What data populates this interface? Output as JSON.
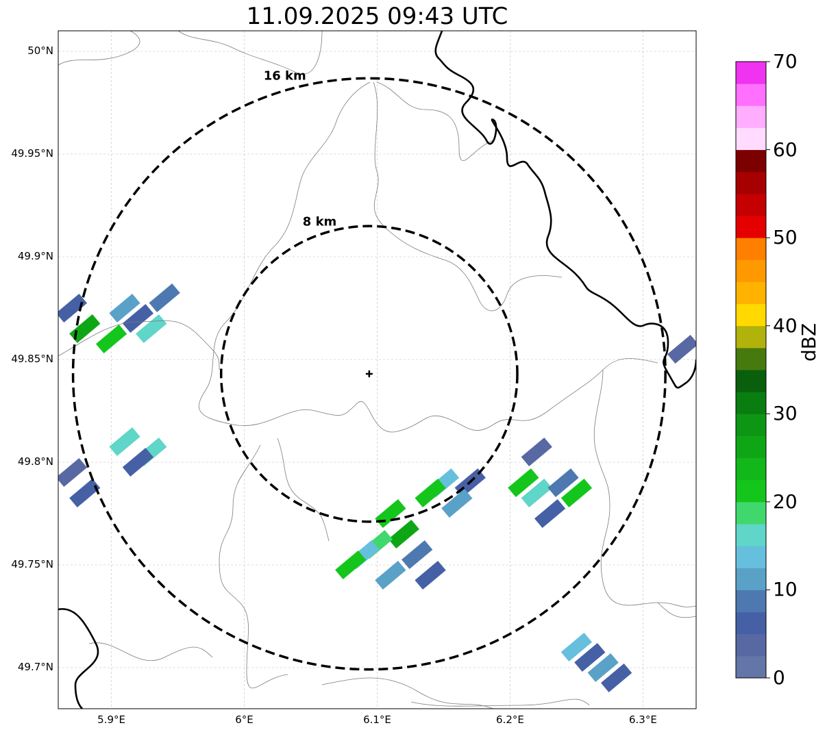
{
  "title": "11.09.2025 09:43 UTC",
  "map": {
    "lon_range": [
      5.86,
      6.34
    ],
    "lat_range": [
      49.68,
      50.01
    ],
    "gridlines": true,
    "center_marker": {
      "lon": 6.094,
      "lat": 49.843,
      "icon": "plus-marker-icon"
    },
    "x_ticks": [
      {
        "lon": 5.9,
        "label": "5.9°E"
      },
      {
        "lon": 6.0,
        "label": "6°E"
      },
      {
        "lon": 6.1,
        "label": "6.1°E"
      },
      {
        "lon": 6.2,
        "label": "6.2°E"
      },
      {
        "lon": 6.3,
        "label": "6.3°E"
      }
    ],
    "y_ticks": [
      {
        "lat": 50.0,
        "label": "50°N"
      },
      {
        "lat": 49.95,
        "label": "49.95°N"
      },
      {
        "lat": 49.9,
        "label": "49.9°N"
      },
      {
        "lat": 49.85,
        "label": "49.85°N"
      },
      {
        "lat": 49.8,
        "label": "49.8°N"
      },
      {
        "lat": 49.75,
        "label": "49.75°N"
      },
      {
        "lat": 49.7,
        "label": "49.7°N"
      }
    ],
    "range_rings": [
      {
        "radius_km": 8,
        "label": "8 km"
      },
      {
        "radius_km": 16,
        "label": "16 km"
      }
    ],
    "echoes": [
      {
        "lon": 5.92,
        "lat": 49.87,
        "dbz": 5
      },
      {
        "lon": 5.9,
        "lat": 49.86,
        "dbz": 22
      },
      {
        "lon": 5.88,
        "lat": 49.865,
        "dbz": 25
      },
      {
        "lon": 5.93,
        "lat": 49.865,
        "dbz": 15
      },
      {
        "lon": 5.91,
        "lat": 49.875,
        "dbz": 12
      },
      {
        "lon": 5.94,
        "lat": 49.88,
        "dbz": 8
      },
      {
        "lon": 5.87,
        "lat": 49.875,
        "dbz": 6
      },
      {
        "lon": 5.91,
        "lat": 49.81,
        "dbz": 15
      },
      {
        "lon": 5.93,
        "lat": 49.805,
        "dbz": 16
      },
      {
        "lon": 5.92,
        "lat": 49.8,
        "dbz": 5
      },
      {
        "lon": 5.87,
        "lat": 49.795,
        "dbz": 4
      },
      {
        "lon": 5.88,
        "lat": 49.785,
        "dbz": 6
      },
      {
        "lon": 6.11,
        "lat": 49.775,
        "dbz": 22
      },
      {
        "lon": 6.12,
        "lat": 49.765,
        "dbz": 25
      },
      {
        "lon": 6.1,
        "lat": 49.76,
        "dbz": 18
      },
      {
        "lon": 6.09,
        "lat": 49.755,
        "dbz": 14
      },
      {
        "lon": 6.13,
        "lat": 49.755,
        "dbz": 8
      },
      {
        "lon": 6.08,
        "lat": 49.75,
        "dbz": 20
      },
      {
        "lon": 6.14,
        "lat": 49.745,
        "dbz": 5
      },
      {
        "lon": 6.11,
        "lat": 49.745,
        "dbz": 12
      },
      {
        "lon": 6.15,
        "lat": 49.79,
        "dbz": 14
      },
      {
        "lon": 6.14,
        "lat": 49.785,
        "dbz": 22
      },
      {
        "lon": 6.17,
        "lat": 49.79,
        "dbz": 6
      },
      {
        "lon": 6.16,
        "lat": 49.78,
        "dbz": 12
      },
      {
        "lon": 6.21,
        "lat": 49.79,
        "dbz": 22
      },
      {
        "lon": 6.22,
        "lat": 49.785,
        "dbz": 16
      },
      {
        "lon": 6.24,
        "lat": 49.79,
        "dbz": 8
      },
      {
        "lon": 6.25,
        "lat": 49.785,
        "dbz": 20
      },
      {
        "lon": 6.23,
        "lat": 49.775,
        "dbz": 6
      },
      {
        "lon": 6.22,
        "lat": 49.805,
        "dbz": 4
      },
      {
        "lon": 6.33,
        "lat": 49.855,
        "dbz": 4
      },
      {
        "lon": 6.26,
        "lat": 49.705,
        "dbz": 6
      },
      {
        "lon": 6.25,
        "lat": 49.71,
        "dbz": 14
      },
      {
        "lon": 6.27,
        "lat": 49.7,
        "dbz": 12
      },
      {
        "lon": 6.28,
        "lat": 49.695,
        "dbz": 5
      }
    ]
  },
  "colorbar": {
    "label": "dBZ",
    "min": 0,
    "max": 70,
    "ticks": [
      "0",
      "10",
      "20",
      "30",
      "40",
      "50",
      "60",
      "70"
    ],
    "colors": [
      "#6476a7",
      "#5868a2",
      "#4660a5",
      "#4d79b0",
      "#5aa1c8",
      "#66bfdd",
      "#5fd6c7",
      "#40d86c",
      "#14c61c",
      "#12b71a",
      "#0fa616",
      "#0d9613",
      "#0a7d10",
      "#095f0c",
      "#477a0e",
      "#b1b20b",
      "#ffd900",
      "#ffb300",
      "#ff9900",
      "#ff7f00",
      "#e50000",
      "#c50000",
      "#a60000",
      "#7d0000",
      "#ffdbff",
      "#ffadff",
      "#ff70ff",
      "#f033f0"
    ]
  }
}
